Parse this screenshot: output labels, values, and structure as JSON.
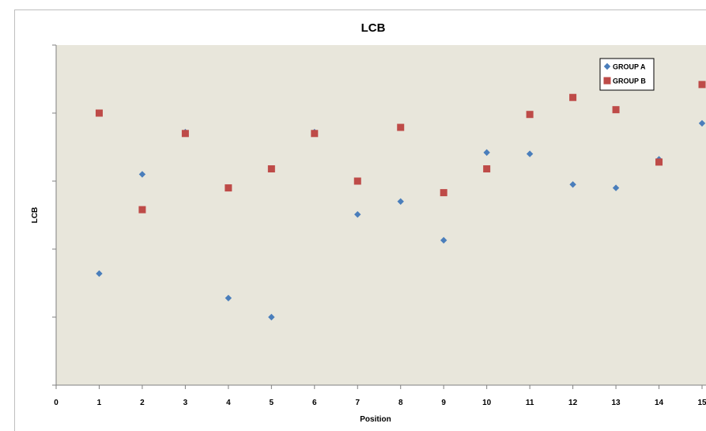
{
  "chart_data": {
    "type": "scatter",
    "title": "LCB",
    "xlabel": "Position",
    "ylabel": "LCB",
    "xlim": [
      0,
      15
    ],
    "ylim": [
      0,
      5
    ],
    "x_ticks": [
      0,
      1,
      2,
      3,
      4,
      5,
      6,
      7,
      8,
      9,
      10,
      11,
      12,
      13,
      14,
      15
    ],
    "grid": false,
    "legend_position": "top-right",
    "plot_background": "#e8e6db",
    "series": [
      {
        "name": "GROUP A",
        "marker": "diamond",
        "color": "#4a7ebb",
        "x": [
          1,
          2,
          3,
          4,
          5,
          6,
          7,
          8,
          9,
          10,
          11,
          12,
          13,
          14,
          15
        ],
        "y": [
          1.64,
          3.1,
          3.72,
          1.28,
          1.0,
          3.72,
          2.51,
          2.7,
          2.13,
          3.42,
          3.4,
          2.95,
          2.9,
          3.32,
          3.85
        ]
      },
      {
        "name": "GROUP B",
        "marker": "square",
        "color": "#be4b48",
        "x": [
          1,
          2,
          3,
          4,
          5,
          6,
          7,
          8,
          9,
          10,
          11,
          12,
          13,
          14,
          15
        ],
        "y": [
          4.0,
          2.58,
          3.7,
          2.9,
          3.18,
          3.7,
          3.0,
          3.79,
          2.83,
          3.18,
          3.98,
          4.23,
          4.05,
          3.28,
          4.42
        ]
      }
    ]
  }
}
